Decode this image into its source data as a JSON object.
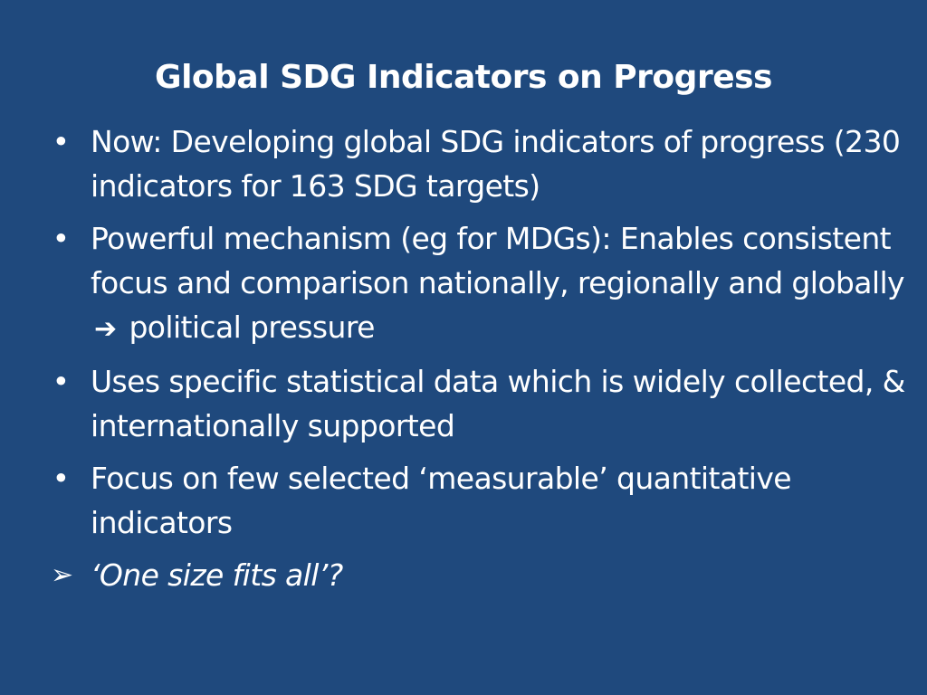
{
  "slide": {
    "background": "#1f497d",
    "text_color": "#ffffff",
    "title": "Global SDG Indicators on Progress",
    "bullets": [
      {
        "text": "Now: Developing global SDG indicators of progress (230 indicators for 163 SDG targets)"
      },
      {
        "text_before_arrow": "Powerful mechanism (eg for MDGs): Enables consistent focus and comparison nationally, regionally and globally",
        "arrow_icon": "right-arrow-icon",
        "text_after_arrow": "political pressure"
      },
      {
        "text": "Uses specific statistical data which is widely collected, & internationally supported"
      },
      {
        "text": "Focus on few selected ‘measurable’ quantitative indicators"
      }
    ],
    "final_point": {
      "icon": "arrowhead-bullet-icon",
      "text": "‘One size fits all’?"
    }
  }
}
